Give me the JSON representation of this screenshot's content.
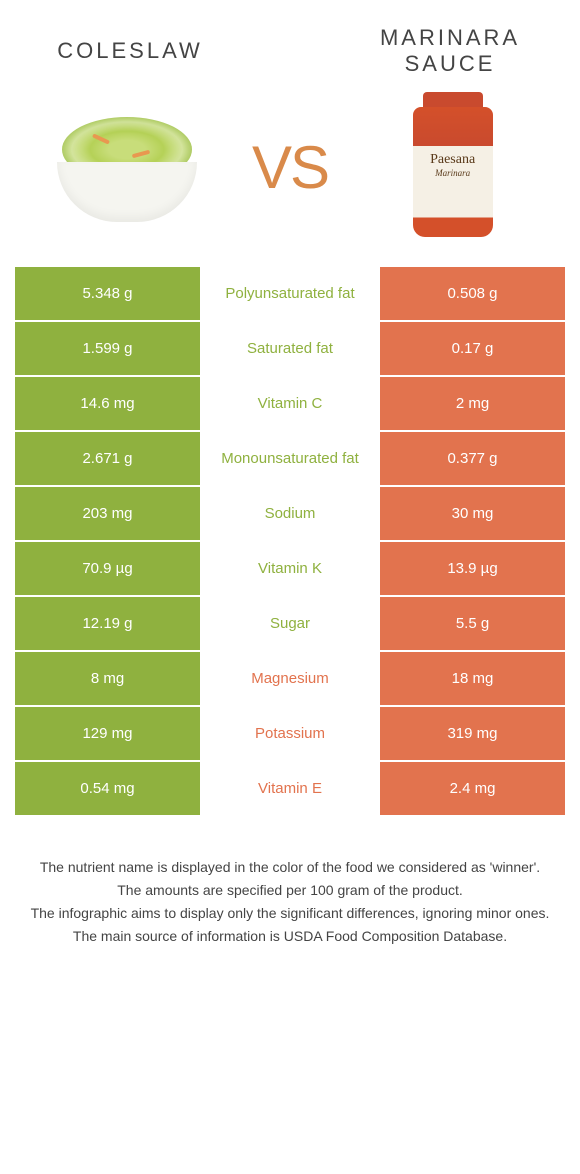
{
  "header": {
    "left_title": "COLESLAW",
    "right_title": "MARINARA SAUCE",
    "vs_text": "VS"
  },
  "colors": {
    "left": "#8fb13f",
    "right": "#e2734e",
    "vs": "#d98a4a",
    "background": "#ffffff"
  },
  "jar": {
    "brand": "Paesana",
    "variety": "Marinara"
  },
  "table": {
    "rows": [
      {
        "left": "5.348 g",
        "label": "Polyunsaturated fat",
        "right": "0.508 g",
        "winner": "left"
      },
      {
        "left": "1.599 g",
        "label": "Saturated fat",
        "right": "0.17 g",
        "winner": "left"
      },
      {
        "left": "14.6 mg",
        "label": "Vitamin C",
        "right": "2 mg",
        "winner": "left"
      },
      {
        "left": "2.671 g",
        "label": "Monounsaturated fat",
        "right": "0.377 g",
        "winner": "left"
      },
      {
        "left": "203 mg",
        "label": "Sodium",
        "right": "30 mg",
        "winner": "left"
      },
      {
        "left": "70.9 µg",
        "label": "Vitamin K",
        "right": "13.9 µg",
        "winner": "left"
      },
      {
        "left": "12.19 g",
        "label": "Sugar",
        "right": "5.5 g",
        "winner": "left"
      },
      {
        "left": "8 mg",
        "label": "Magnesium",
        "right": "18 mg",
        "winner": "right"
      },
      {
        "left": "129 mg",
        "label": "Potassium",
        "right": "319 mg",
        "winner": "right"
      },
      {
        "left": "0.54 mg",
        "label": "Vitamin E",
        "right": "2.4 mg",
        "winner": "right"
      }
    ]
  },
  "footer": {
    "line1": "The nutrient name is displayed in the color of the food we considered as 'winner'.",
    "line2": "The amounts are specified per 100 gram of the product.",
    "line3": "The infographic aims to display only the significant differences, ignoring minor ones.",
    "line4": "The main source of information is USDA Food Composition Database."
  }
}
